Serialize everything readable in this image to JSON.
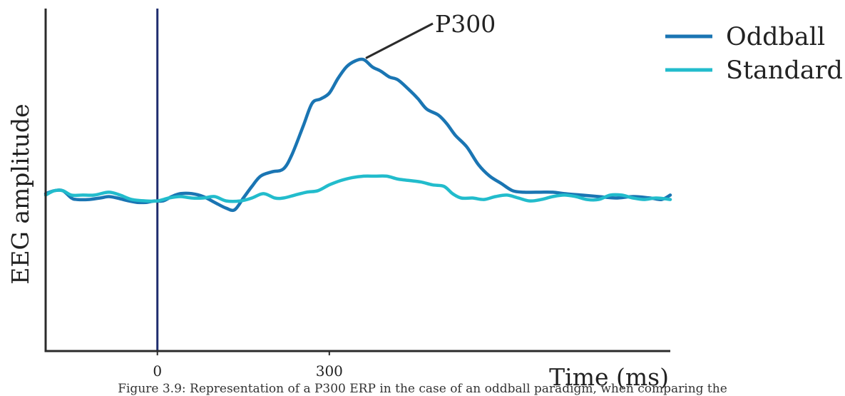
{
  "chart_data": {
    "type": "line",
    "title": "",
    "xlabel": "Time (ms)",
    "ylabel": "EEG amplitude",
    "xlim": [
      -195,
      895
    ],
    "ylim": [
      -1.0,
      1.35
    ],
    "x_ticks": [
      0,
      300
    ],
    "y_ticks": [],
    "grid": false,
    "legend": "top-right",
    "stimulus_marker": {
      "x": 0,
      "color": "#1f2d6e"
    },
    "annotation": {
      "text": "P300",
      "x": 360,
      "y": 1.0
    },
    "series": [
      {
        "name": "Oddball",
        "color": "#1a75b3",
        "points": [
          [
            -195,
            0.08
          ],
          [
            -180,
            0.1
          ],
          [
            -165,
            0.1
          ],
          [
            -150,
            0.05
          ],
          [
            -140,
            0.04
          ],
          [
            -120,
            0.04
          ],
          [
            -100,
            0.05
          ],
          [
            -85,
            0.06
          ],
          [
            -70,
            0.05
          ],
          [
            -50,
            0.03
          ],
          [
            -35,
            0.02
          ],
          [
            -20,
            0.02
          ],
          [
            -5,
            0.03
          ],
          [
            10,
            0.03
          ],
          [
            25,
            0.06
          ],
          [
            40,
            0.08
          ],
          [
            60,
            0.08
          ],
          [
            80,
            0.06
          ],
          [
            100,
            0.02
          ],
          [
            120,
            -0.02
          ],
          [
            135,
            -0.03
          ],
          [
            150,
            0.05
          ],
          [
            165,
            0.13
          ],
          [
            180,
            0.2
          ],
          [
            200,
            0.23
          ],
          [
            220,
            0.25
          ],
          [
            235,
            0.35
          ],
          [
            255,
            0.55
          ],
          [
            270,
            0.7
          ],
          [
            285,
            0.73
          ],
          [
            300,
            0.77
          ],
          [
            315,
            0.87
          ],
          [
            330,
            0.95
          ],
          [
            345,
            0.99
          ],
          [
            360,
            1.0
          ],
          [
            375,
            0.95
          ],
          [
            390,
            0.92
          ],
          [
            405,
            0.88
          ],
          [
            420,
            0.86
          ],
          [
            440,
            0.79
          ],
          [
            455,
            0.73
          ],
          [
            470,
            0.66
          ],
          [
            490,
            0.62
          ],
          [
            505,
            0.56
          ],
          [
            520,
            0.48
          ],
          [
            540,
            0.4
          ],
          [
            560,
            0.28
          ],
          [
            580,
            0.2
          ],
          [
            600,
            0.15
          ],
          [
            620,
            0.1
          ],
          [
            640,
            0.09
          ],
          [
            660,
            0.09
          ],
          [
            690,
            0.09
          ],
          [
            710,
            0.08
          ],
          [
            740,
            0.07
          ],
          [
            770,
            0.06
          ],
          [
            800,
            0.05
          ],
          [
            830,
            0.06
          ],
          [
            860,
            0.05
          ],
          [
            880,
            0.04
          ],
          [
            895,
            0.07
          ]
        ]
      },
      {
        "name": "Standard",
        "color": "#22bccc",
        "points": [
          [
            -195,
            0.07
          ],
          [
            -180,
            0.1
          ],
          [
            -165,
            0.1
          ],
          [
            -150,
            0.07
          ],
          [
            -130,
            0.07
          ],
          [
            -110,
            0.07
          ],
          [
            -85,
            0.09
          ],
          [
            -65,
            0.07
          ],
          [
            -45,
            0.04
          ],
          [
            -20,
            0.03
          ],
          [
            0,
            0.03
          ],
          [
            20,
            0.05
          ],
          [
            40,
            0.06
          ],
          [
            60,
            0.05
          ],
          [
            80,
            0.05
          ],
          [
            100,
            0.06
          ],
          [
            120,
            0.03
          ],
          [
            145,
            0.03
          ],
          [
            165,
            0.05
          ],
          [
            185,
            0.08
          ],
          [
            205,
            0.05
          ],
          [
            220,
            0.05
          ],
          [
            240,
            0.07
          ],
          [
            260,
            0.09
          ],
          [
            280,
            0.1
          ],
          [
            300,
            0.14
          ],
          [
            320,
            0.17
          ],
          [
            340,
            0.19
          ],
          [
            360,
            0.2
          ],
          [
            380,
            0.2
          ],
          [
            400,
            0.2
          ],
          [
            420,
            0.18
          ],
          [
            440,
            0.17
          ],
          [
            460,
            0.16
          ],
          [
            480,
            0.14
          ],
          [
            500,
            0.13
          ],
          [
            515,
            0.08
          ],
          [
            530,
            0.05
          ],
          [
            550,
            0.05
          ],
          [
            570,
            0.04
          ],
          [
            590,
            0.06
          ],
          [
            610,
            0.07
          ],
          [
            630,
            0.05
          ],
          [
            650,
            0.03
          ],
          [
            670,
            0.04
          ],
          [
            690,
            0.06
          ],
          [
            710,
            0.07
          ],
          [
            730,
            0.06
          ],
          [
            750,
            0.04
          ],
          [
            770,
            0.04
          ],
          [
            790,
            0.07
          ],
          [
            810,
            0.07
          ],
          [
            830,
            0.05
          ],
          [
            850,
            0.04
          ],
          [
            870,
            0.05
          ],
          [
            895,
            0.04
          ]
        ]
      }
    ]
  },
  "caption": "Figure 3.9: Representation of a P300 ERP in the case of an oddball paradigm, when comparing the"
}
